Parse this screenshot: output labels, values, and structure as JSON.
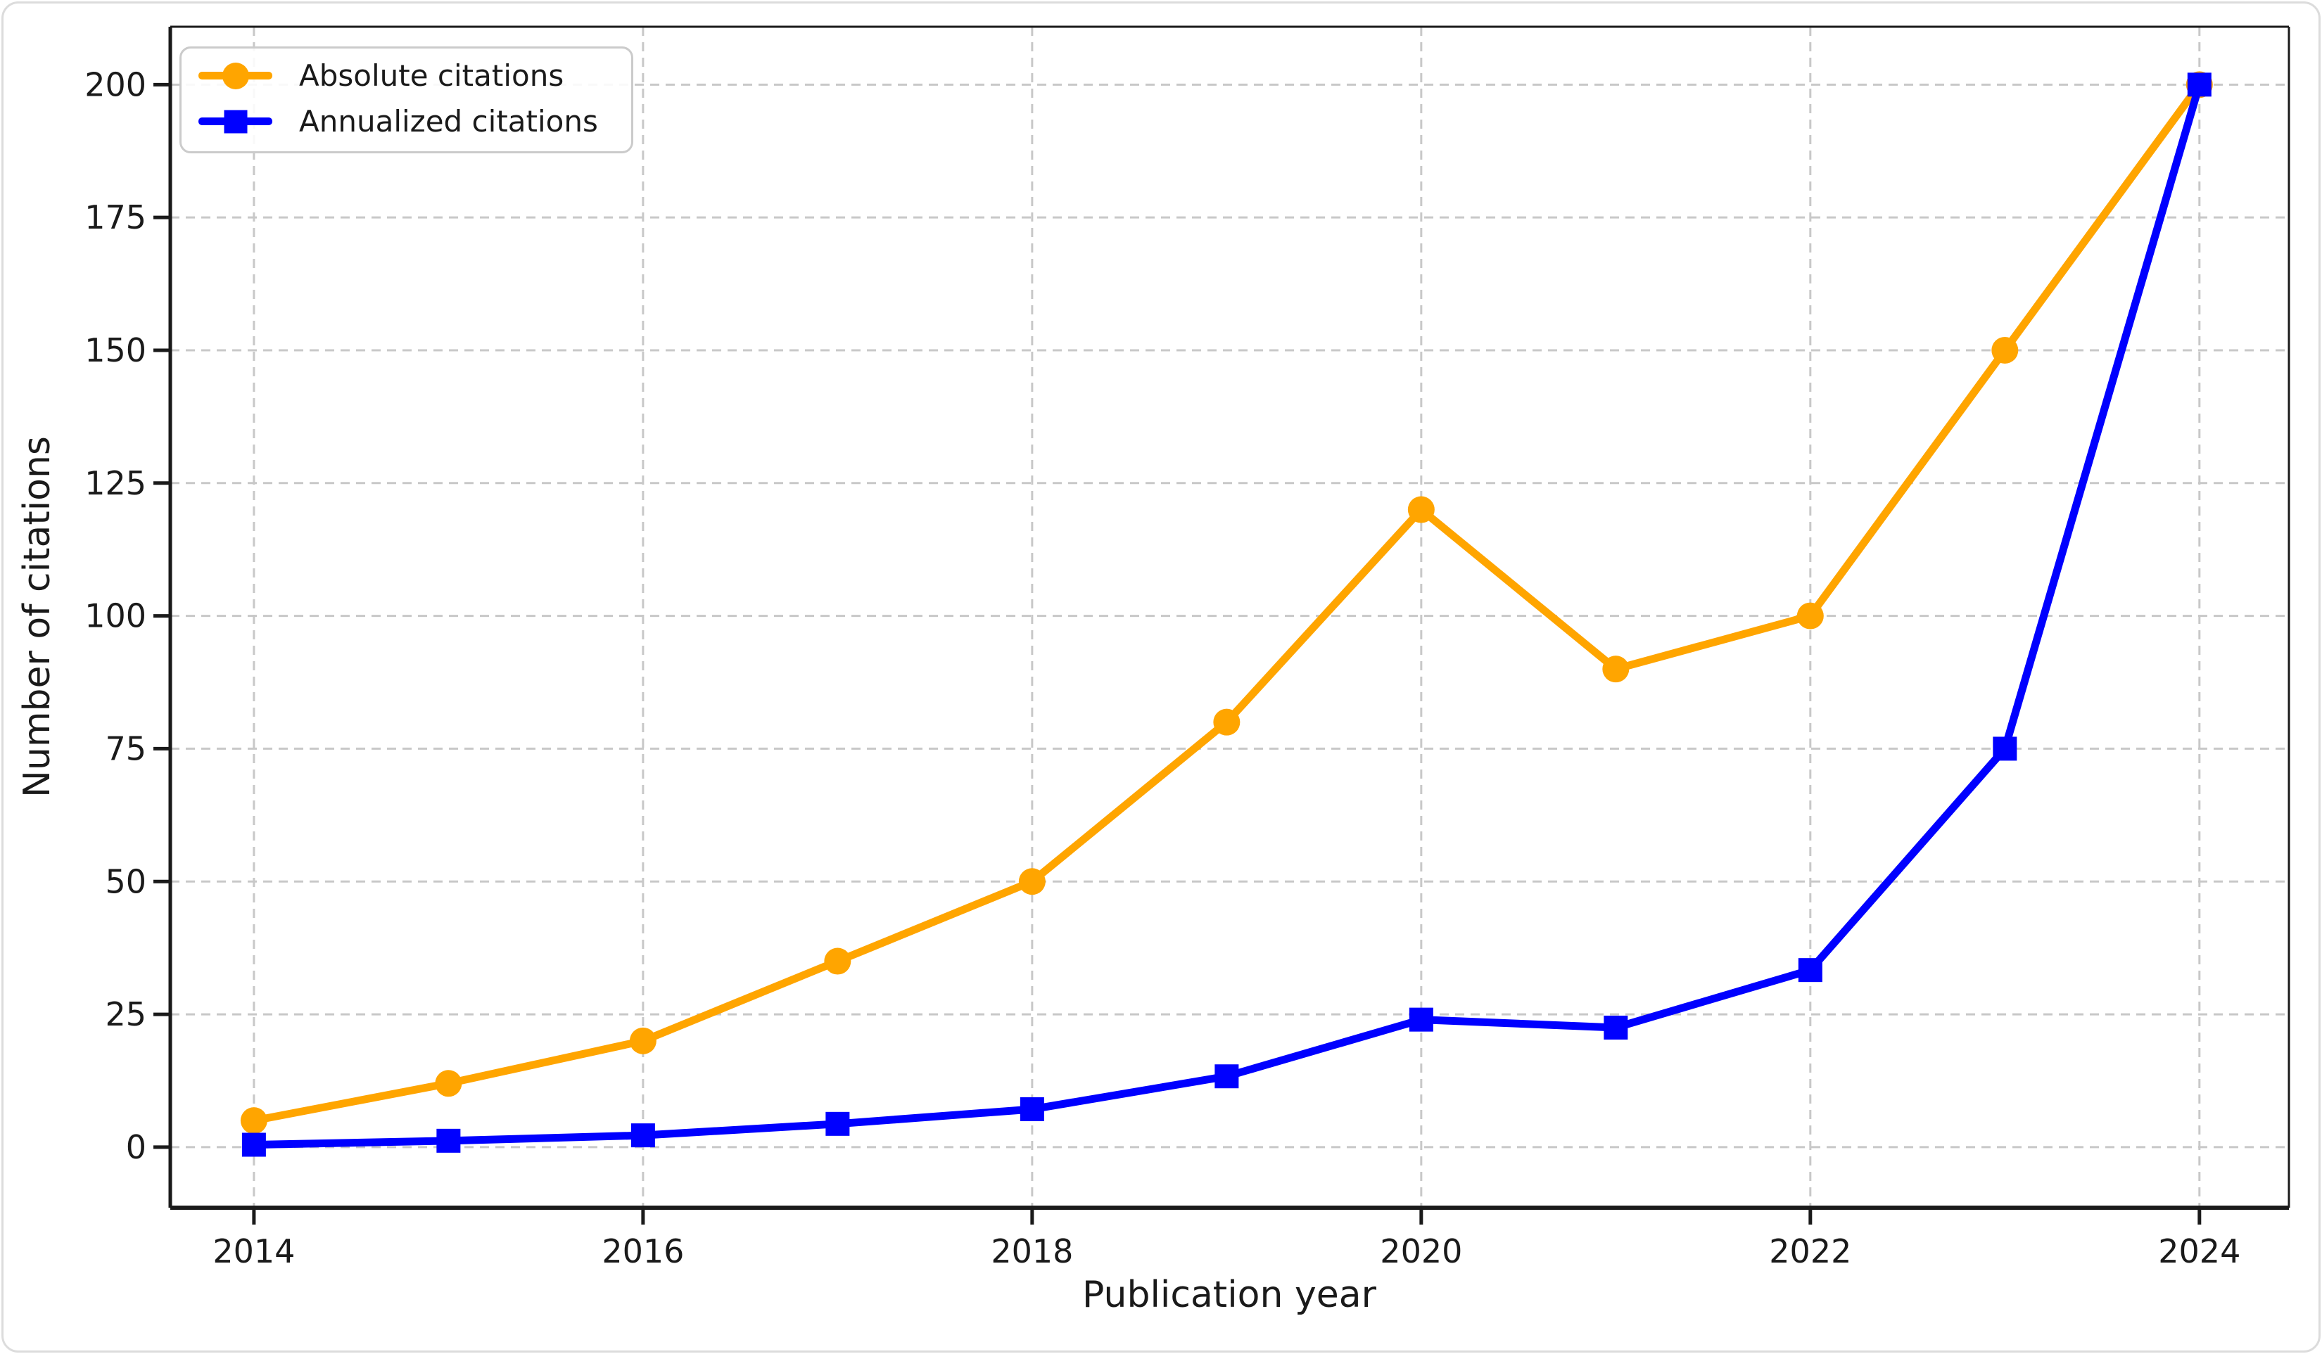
{
  "figure": {
    "background": "#FFFFFF",
    "border_color": "#DCDCDC"
  },
  "chart_data": {
    "type": "line",
    "title": "",
    "xlabel": "Publication year",
    "ylabel": "Number of citations",
    "x": [
      2014,
      2015,
      2016,
      2017,
      2018,
      2019,
      2020,
      2021,
      2022,
      2023,
      2024
    ],
    "series": [
      {
        "name": "Absolute citations",
        "color": "#FFA500",
        "marker": "circle",
        "values": [
          5,
          12,
          20,
          35,
          50,
          80,
          120,
          90,
          100,
          150,
          200
        ]
      },
      {
        "name": "Annualized citations",
        "color": "#0000FF",
        "marker": "square",
        "values": [
          0.45,
          1.2,
          2.22,
          4.38,
          7.14,
          13.33,
          24,
          22.5,
          33.33,
          75,
          200
        ]
      }
    ],
    "x_ticks": [
      2014,
      2016,
      2018,
      2020,
      2022,
      2024
    ],
    "y_ticks": [
      0,
      25,
      50,
      75,
      100,
      125,
      150,
      175,
      200
    ],
    "xlim": [
      2013.57,
      2024.46
    ],
    "ylim": [
      -11.4,
      210.9
    ],
    "grid": {
      "show": true,
      "color": "#C8C8C8",
      "dash": "13 9",
      "width": 3
    },
    "legend": {
      "position": "upper-left"
    }
  },
  "axes": {
    "spine_color": "#1A1A1A",
    "tick_color": "#1A1A1A",
    "label_color": "#1A1A1A"
  }
}
